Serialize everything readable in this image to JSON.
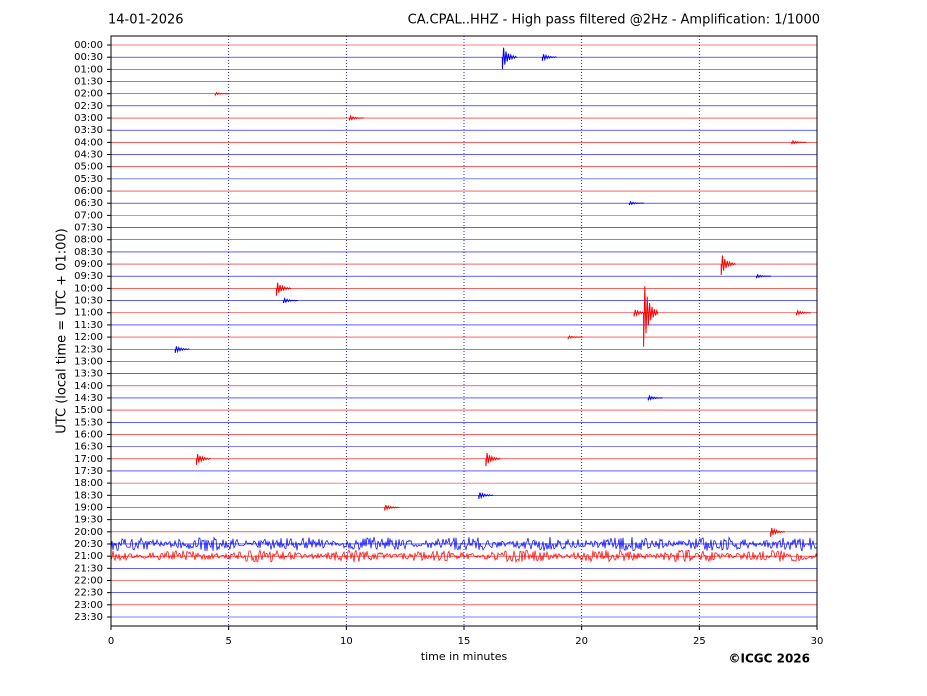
{
  "chart_data": {
    "type": "helicorder",
    "date": "14-01-2026",
    "title": "CA.CPAL..HHZ - High pass filtered @2Hz - Amplification: 1/1000",
    "ylabel": "UTC (local time = UTC + 01:00)",
    "xlabel": "time in minutes",
    "copyright": "©ICGC 2026",
    "rows": [
      "00:00",
      "00:30",
      "01:00",
      "01:30",
      "02:00",
      "02:30",
      "03:00",
      "03:30",
      "04:00",
      "04:30",
      "05:00",
      "05:30",
      "06:00",
      "06:30",
      "07:00",
      "07:30",
      "08:00",
      "08:30",
      "09:00",
      "09:30",
      "10:00",
      "10:30",
      "11:00",
      "11:30",
      "12:00",
      "12:30",
      "13:00",
      "13:30",
      "14:00",
      "14:30",
      "15:00",
      "15:30",
      "16:00",
      "16:30",
      "17:00",
      "17:30",
      "18:00",
      "18:30",
      "19:00",
      "19:30",
      "20:00",
      "20:30",
      "21:00",
      "21:30",
      "22:00",
      "22:30",
      "23:00",
      "23:30"
    ],
    "colors": [
      "#ff0000",
      "#0000ff"
    ],
    "xlim": [
      0,
      30
    ],
    "xticks": [
      0,
      5,
      10,
      15,
      20,
      25,
      30
    ],
    "grid": true,
    "events": [
      {
        "row": 1,
        "x": 16.8,
        "amp": 1.0
      },
      {
        "row": 1,
        "x": 18.5,
        "amp": 0.3
      },
      {
        "row": 4,
        "x": 4.6,
        "amp": 0.1
      },
      {
        "row": 6,
        "x": 10.3,
        "amp": 0.2
      },
      {
        "row": 8,
        "x": 29.1,
        "amp": 0.15
      },
      {
        "row": 13,
        "x": 22.2,
        "amp": 0.15
      },
      {
        "row": 18,
        "x": 26.1,
        "amp": 0.9
      },
      {
        "row": 19,
        "x": 27.6,
        "amp": 0.15
      },
      {
        "row": 20,
        "x": 7.2,
        "amp": 0.6
      },
      {
        "row": 21,
        "x": 7.5,
        "amp": 0.2
      },
      {
        "row": 22,
        "x": 22.8,
        "amp": 2.8
      },
      {
        "row": 22,
        "x": 22.4,
        "amp": 0.3
      },
      {
        "row": 22,
        "x": 29.3,
        "amp": 0.2
      },
      {
        "row": 24,
        "x": 19.6,
        "amp": 0.1
      },
      {
        "row": 25,
        "x": 2.9,
        "amp": 0.3
      },
      {
        "row": 29,
        "x": 23.0,
        "amp": 0.2
      },
      {
        "row": 34,
        "x": 3.8,
        "amp": 0.5
      },
      {
        "row": 34,
        "x": 16.1,
        "amp": 0.6
      },
      {
        "row": 37,
        "x": 15.8,
        "amp": 0.3
      },
      {
        "row": 38,
        "x": 11.8,
        "amp": 0.25
      },
      {
        "row": 40,
        "x": 28.2,
        "amp": 0.4
      }
    ],
    "noise": [
      {
        "row": 41,
        "amp": 0.6
      },
      {
        "row": 42,
        "amp": 0.5
      }
    ]
  }
}
